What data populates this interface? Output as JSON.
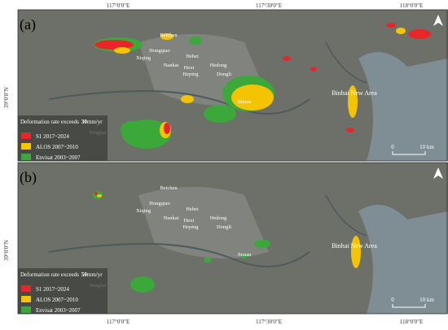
{
  "panels": [
    {
      "label": "(a)",
      "threshold": "30"
    },
    {
      "label": "(b)",
      "threshold": "50"
    }
  ],
  "top_axis": [
    "117°0'0\"E",
    "117°30'0\"E",
    "118°0'0\"E"
  ],
  "bottom_axis": [
    "117°0'0\"E",
    "117°30'0\"E",
    "118°0'0\"E"
  ],
  "left_axis": "39°0'0\"N",
  "places": [
    "Beichen",
    "Hongqiao",
    "Xiqing",
    "Hebei",
    "Nankai",
    "Hexi",
    "Hedong",
    "Heping",
    "Dongli",
    "Jinnan",
    "Binhai New Area",
    "Ninghai"
  ],
  "legend": {
    "prefix": "Deformation rate exceeds",
    "unit": "mm/yr",
    "items": [
      {
        "label": "S1 2017~2024",
        "color": "#e8262a"
      },
      {
        "label": "ALOS 2007~2010",
        "color": "#f5c400"
      },
      {
        "label": "Envisat 2003~2007",
        "color": "#3aa93a"
      }
    ]
  },
  "scale": {
    "start": "0",
    "end": "10 km"
  }
}
